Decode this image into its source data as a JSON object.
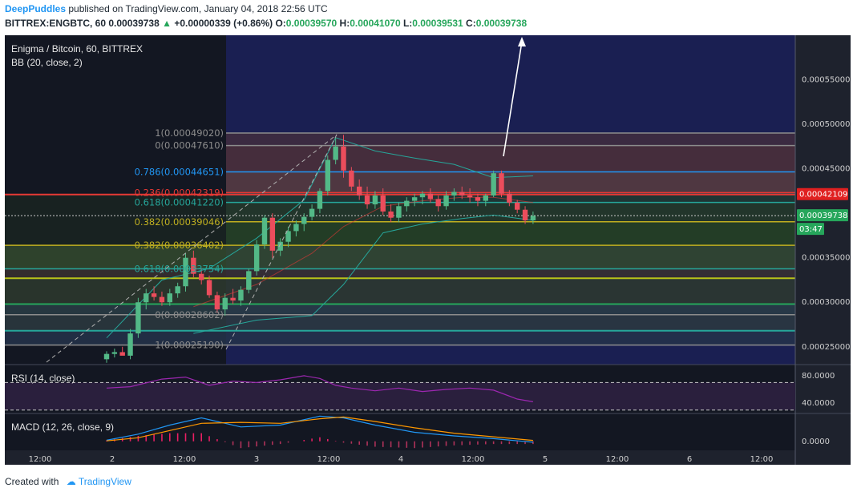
{
  "header": {
    "author": "DeepPuddles",
    "published": "published on TradingView.com, January 04, 2018 22:56 UTC",
    "symbol": "BITTREX:ENGBTC, 60",
    "last": "0.00039738",
    "change": "+0.00000339 (+0.86%)",
    "o_label": "O:",
    "o_value": "0.00039570",
    "h_label": "H:",
    "h_value": "0.00041070",
    "l_label": "L:",
    "l_value": "0.00039531",
    "c_label": "C:",
    "c_value": "0.00039738"
  },
  "footer": {
    "created_with": "Created with",
    "brand": "TradingView"
  },
  "chart_data": {
    "type": "candlestick",
    "title": "Enigma / Bitcoin, 60, BITTREX",
    "indicator": "BB (20, close, 2)",
    "ylim": [
      0.00023,
      0.0006
    ],
    "y_ticks": [
      "0.00055000",
      "0.00050000",
      "0.00045000",
      "0.00035000",
      "0.00030000",
      "0.00025000"
    ],
    "x_ticks": [
      "12:00",
      "2",
      "12:00",
      "3",
      "12:00",
      "4",
      "12:00",
      "5",
      "12:00",
      "6",
      "12:00"
    ],
    "price_labels": [
      {
        "text": "0.00042109",
        "value": 0.00042109,
        "color": "#e02020"
      },
      {
        "text": "0.00039738",
        "value": 0.00039738,
        "color": "#26a65b"
      },
      {
        "text": "03:47",
        "value": 0.00038,
        "color": "#26a65b"
      }
    ],
    "fib_upper": [
      {
        "text": "1(0.00049020)",
        "value": 0.0004902,
        "color": "#8c8c8c"
      },
      {
        "text": "0(0.00047610)",
        "value": 0.0004761,
        "color": "#8c8c8c"
      },
      {
        "text": "0.786(0.00044651)",
        "value": 0.00044651,
        "color": "#2196f3"
      },
      {
        "text": "0.236(0.00042319)",
        "value": 0.00042319,
        "color": "#e53935"
      },
      {
        "text": "0.618(0.00041220)",
        "value": 0.0004122,
        "color": "#26a69a"
      },
      {
        "text": "0.382(0.00039046)",
        "value": 0.00039046,
        "color": "#c0b020"
      }
    ],
    "fib_lower": [
      {
        "text": "0.382(0.00036402)",
        "value": 0.00036402,
        "color": "#c0b020"
      },
      {
        "text": "0.618(0.00033754)",
        "value": 0.00033754,
        "color": "#26a69a"
      },
      {
        "text": "0(0.00028602)",
        "value": 0.00028602,
        "color": "#8c8c8c"
      },
      {
        "text": "1(0.00025190)",
        "value": 0.0002519,
        "color": "#8c8c8c"
      }
    ],
    "candles": [
      {
        "t": 1,
        "o": 0.000236,
        "h": 0.000245,
        "l": 0.000232,
        "c": 0.000242
      },
      {
        "t": 2,
        "o": 0.000242,
        "h": 0.000248,
        "l": 0.000238,
        "c": 0.000244
      },
      {
        "t": 3,
        "o": 0.000244,
        "h": 0.00025,
        "l": 0.000242,
        "c": 0.00024
      },
      {
        "t": 4,
        "o": 0.00024,
        "h": 0.00027,
        "l": 0.000236,
        "c": 0.000265
      },
      {
        "t": 5,
        "o": 0.000265,
        "h": 0.000305,
        "l": 0.00026,
        "c": 0.0003
      },
      {
        "t": 6,
        "o": 0.0003,
        "h": 0.000315,
        "l": 0.000292,
        "c": 0.00031
      },
      {
        "t": 7,
        "o": 0.00031,
        "h": 0.000318,
        "l": 0.000302,
        "c": 0.000306
      },
      {
        "t": 8,
        "o": 0.000306,
        "h": 0.000312,
        "l": 0.000296,
        "c": 0.0003
      },
      {
        "t": 9,
        "o": 0.0003,
        "h": 0.000315,
        "l": 0.000296,
        "c": 0.00031
      },
      {
        "t": 10,
        "o": 0.00031,
        "h": 0.000322,
        "l": 0.000305,
        "c": 0.000318
      },
      {
        "t": 11,
        "o": 0.000318,
        "h": 0.000355,
        "l": 0.000312,
        "c": 0.00035
      },
      {
        "t": 12,
        "o": 0.00035,
        "h": 0.000358,
        "l": 0.000328,
        "c": 0.000332
      },
      {
        "t": 13,
        "o": 0.000332,
        "h": 0.000338,
        "l": 0.00032,
        "c": 0.000325
      },
      {
        "t": 14,
        "o": 0.000325,
        "h": 0.00033,
        "l": 0.000305,
        "c": 0.000308
      },
      {
        "t": 15,
        "o": 0.000308,
        "h": 0.000312,
        "l": 0.000288,
        "c": 0.000292
      },
      {
        "t": 16,
        "o": 0.000292,
        "h": 0.00031,
        "l": 0.000285,
        "c": 0.000305
      },
      {
        "t": 17,
        "o": 0.000305,
        "h": 0.000315,
        "l": 0.000298,
        "c": 0.000302
      },
      {
        "t": 18,
        "o": 0.000302,
        "h": 0.000318,
        "l": 0.000296,
        "c": 0.000314
      },
      {
        "t": 19,
        "o": 0.000314,
        "h": 0.000338,
        "l": 0.00031,
        "c": 0.000335
      },
      {
        "t": 20,
        "o": 0.000335,
        "h": 0.00037,
        "l": 0.00033,
        "c": 0.000365
      },
      {
        "t": 21,
        "o": 0.000365,
        "h": 0.000398,
        "l": 0.00036,
        "c": 0.000395
      },
      {
        "t": 22,
        "o": 0.000395,
        "h": 0.0004,
        "l": 0.00035,
        "c": 0.000358
      },
      {
        "t": 23,
        "o": 0.000358,
        "h": 0.000372,
        "l": 0.000352,
        "c": 0.000368
      },
      {
        "t": 24,
        "o": 0.000368,
        "h": 0.000385,
        "l": 0.000362,
        "c": 0.00038
      },
      {
        "t": 25,
        "o": 0.00038,
        "h": 0.000392,
        "l": 0.000374,
        "c": 0.000388
      },
      {
        "t": 26,
        "o": 0.000388,
        "h": 0.0004,
        "l": 0.00038,
        "c": 0.000396
      },
      {
        "t": 27,
        "o": 0.000396,
        "h": 0.00041,
        "l": 0.000392,
        "c": 0.000405
      },
      {
        "t": 28,
        "o": 0.000405,
        "h": 0.000428,
        "l": 0.0004,
        "c": 0.000425
      },
      {
        "t": 29,
        "o": 0.000425,
        "h": 0.000465,
        "l": 0.00042,
        "c": 0.00046
      },
      {
        "t": 30,
        "o": 0.00046,
        "h": 0.000485,
        "l": 0.000455,
        "c": 0.000475
      },
      {
        "t": 31,
        "o": 0.000475,
        "h": 0.000488,
        "l": 0.00044,
        "c": 0.000448
      },
      {
        "t": 32,
        "o": 0.000448,
        "h": 0.000452,
        "l": 0.000425,
        "c": 0.00043
      },
      {
        "t": 33,
        "o": 0.00043,
        "h": 0.000438,
        "l": 0.000415,
        "c": 0.00042
      },
      {
        "t": 34,
        "o": 0.00042,
        "h": 0.00043,
        "l": 0.000405,
        "c": 0.00041
      },
      {
        "t": 35,
        "o": 0.00041,
        "h": 0.000425,
        "l": 0.000405,
        "c": 0.00042
      },
      {
        "t": 36,
        "o": 0.00042,
        "h": 0.000428,
        "l": 0.000398,
        "c": 0.000402
      },
      {
        "t": 37,
        "o": 0.000402,
        "h": 0.00041,
        "l": 0.00039,
        "c": 0.000395
      },
      {
        "t": 38,
        "o": 0.000395,
        "h": 0.000412,
        "l": 0.00039,
        "c": 0.000408
      },
      {
        "t": 39,
        "o": 0.000408,
        "h": 0.000418,
        "l": 0.000402,
        "c": 0.000414
      },
      {
        "t": 40,
        "o": 0.000414,
        "h": 0.000422,
        "l": 0.000408,
        "c": 0.000418
      },
      {
        "t": 41,
        "o": 0.000418,
        "h": 0.000425,
        "l": 0.00041,
        "c": 0.000422
      },
      {
        "t": 42,
        "o": 0.000422,
        "h": 0.000428,
        "l": 0.000412,
        "c": 0.000416
      },
      {
        "t": 43,
        "o": 0.000416,
        "h": 0.00042,
        "l": 0.000402,
        "c": 0.000408
      },
      {
        "t": 44,
        "o": 0.000408,
        "h": 0.000425,
        "l": 0.000404,
        "c": 0.00042
      },
      {
        "t": 45,
        "o": 0.00042,
        "h": 0.000428,
        "l": 0.000414,
        "c": 0.000424
      },
      {
        "t": 46,
        "o": 0.000424,
        "h": 0.00043,
        "l": 0.000416,
        "c": 0.00042
      },
      {
        "t": 47,
        "o": 0.00042,
        "h": 0.000428,
        "l": 0.000412,
        "c": 0.000418
      },
      {
        "t": 48,
        "o": 0.000418,
        "h": 0.000422,
        "l": 0.000408,
        "c": 0.000414
      },
      {
        "t": 49,
        "o": 0.000414,
        "h": 0.000422,
        "l": 0.000408,
        "c": 0.00042
      },
      {
        "t": 50,
        "o": 0.00042,
        "h": 0.000448,
        "l": 0.000418,
        "c": 0.000445
      },
      {
        "t": 51,
        "o": 0.000445,
        "h": 0.000448,
        "l": 0.000418,
        "c": 0.000422
      },
      {
        "t": 52,
        "o": 0.000422,
        "h": 0.000426,
        "l": 0.000408,
        "c": 0.000412
      },
      {
        "t": 53,
        "o": 0.000412,
        "h": 0.000415,
        "l": 0.0004,
        "c": 0.000404
      },
      {
        "t": 54,
        "o": 0.000404,
        "h": 0.000408,
        "l": 0.000388,
        "c": 0.000392
      },
      {
        "t": 55,
        "o": 0.000392,
        "h": 0.000402,
        "l": 0.000388,
        "c": 0.000397
      }
    ],
    "bb_upper": [
      [
        1,
        0.00026
      ],
      [
        8,
        0.000325
      ],
      [
        14,
        0.000338
      ],
      [
        20,
        0.000372
      ],
      [
        26,
        0.000415
      ],
      [
        30,
        0.000485
      ],
      [
        35,
        0.00047
      ],
      [
        40,
        0.000462
      ],
      [
        45,
        0.000455
      ],
      [
        50,
        0.00044
      ],
      [
        55,
        0.000442
      ]
    ],
    "bb_lower": [
      [
        12,
        0.000265
      ],
      [
        20,
        0.00028
      ],
      [
        27,
        0.000285
      ],
      [
        31,
        0.00032
      ],
      [
        36,
        0.000378
      ],
      [
        41,
        0.000388
      ],
      [
        46,
        0.000394
      ],
      [
        50,
        0.000398
      ],
      [
        55,
        0.000392
      ]
    ],
    "bb_basis": [
      [
        12,
        0.000295
      ],
      [
        20,
        0.00032
      ],
      [
        27,
        0.000355
      ],
      [
        31,
        0.000385
      ],
      [
        36,
        0.000408
      ],
      [
        41,
        0.000414
      ],
      [
        46,
        0.000418
      ],
      [
        50,
        0.000418
      ],
      [
        55,
        0.000412
      ]
    ],
    "rsi": {
      "title": "RSI (14, close)",
      "ylim": [
        25,
        95
      ],
      "y_ticks": [
        "80.0000",
        "40.0000"
      ],
      "bands": [
        70,
        30
      ],
      "values": [
        [
          1,
          62
        ],
        [
          4,
          64
        ],
        [
          8,
          75
        ],
        [
          11,
          78
        ],
        [
          14,
          66
        ],
        [
          17,
          72
        ],
        [
          20,
          70
        ],
        [
          23,
          74
        ],
        [
          26,
          80
        ],
        [
          28,
          76
        ],
        [
          30,
          66
        ],
        [
          32,
          62
        ],
        [
          35,
          58
        ],
        [
          38,
          62
        ],
        [
          41,
          57
        ],
        [
          44,
          60
        ],
        [
          47,
          62
        ],
        [
          50,
          59
        ],
        [
          53,
          46
        ],
        [
          55,
          42
        ]
      ]
    },
    "macd": {
      "title": "MACD (12, 26, close, 9)",
      "ylim": [
        -1e-05,
        3e-05
      ],
      "y_ticks": [
        "0.0000"
      ],
      "macd_line": [
        [
          1,
          1.2e-06
        ],
        [
          5,
          8e-06
        ],
        [
          9,
          1.8e-05
        ],
        [
          13,
          2.6e-05
        ],
        [
          18,
          1.6e-05
        ],
        [
          23,
          1.8e-05
        ],
        [
          28,
          2.8e-05
        ],
        [
          31,
          2.6e-05
        ],
        [
          35,
          1.8e-05
        ],
        [
          40,
          1e-05
        ],
        [
          45,
          6e-06
        ],
        [
          50,
          3e-06
        ],
        [
          55,
          -1e-06
        ]
      ],
      "signal_line": [
        [
          1,
          5e-07
        ],
        [
          5,
          4e-06
        ],
        [
          9,
          1.2e-05
        ],
        [
          13,
          2e-05
        ],
        [
          18,
          2.1e-05
        ],
        [
          23,
          2e-05
        ],
        [
          28,
          2.5e-05
        ],
        [
          31,
          2.7e-05
        ],
        [
          35,
          2.2e-05
        ],
        [
          40,
          1.5e-05
        ],
        [
          45,
          9e-06
        ],
        [
          50,
          5e-06
        ],
        [
          55,
          1e-06
        ]
      ]
    }
  }
}
